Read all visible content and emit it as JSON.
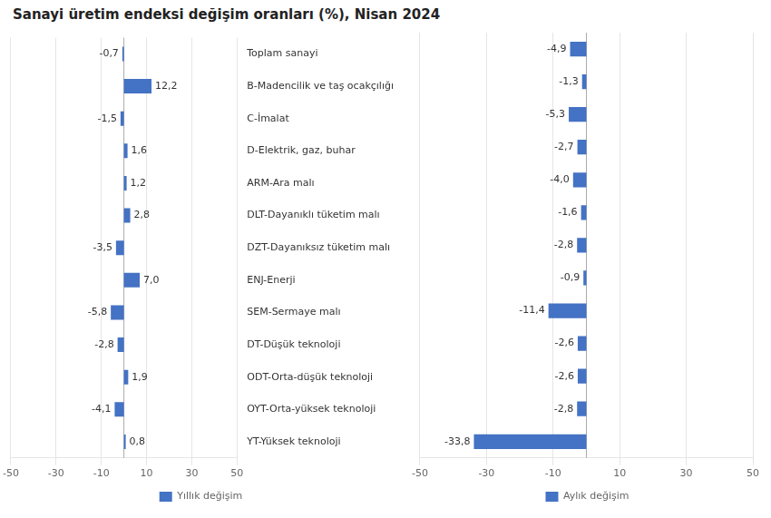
{
  "chart_data": [
    {
      "type": "bar",
      "orientation": "horizontal",
      "title": "Sanayi üretim endeksi değişim oranları (%), Nisan 2024",
      "categories": [
        "Toplam sanayi",
        "B-Madencilik ve taş ocakçılığı",
        "C-İmalat",
        "D-Elektrik, gaz, buhar",
        "ARM-Ara malı",
        "DLT-Dayanıklı tüketim malı",
        "DZT-Dayanıksız tüketim malı",
        "ENJ-Enerji",
        "SEM-Sermaye malı",
        "DT-Düşük teknoloji",
        "ODT-Orta-düşük teknoloji",
        "OYT-Orta-yüksek teknoloji",
        "YT-Yüksek teknoloji"
      ],
      "series": [
        {
          "name": "Yıllık değişim",
          "color": "#4472c4",
          "values": [
            -0.7,
            12.2,
            -1.5,
            1.6,
            1.2,
            2.8,
            -3.5,
            7.0,
            -5.8,
            -2.8,
            1.9,
            -4.1,
            0.8
          ],
          "value_labels": [
            "-0,7",
            "12,2",
            "-1,5",
            "1,6",
            "1,2",
            "2,8",
            "-3,5",
            "7,0",
            "-5,8",
            "-2,8",
            "1,9",
            "-4,1",
            "0,8"
          ]
        }
      ],
      "xlim": [
        -50,
        50
      ],
      "xticks": [
        -50,
        -30,
        -10,
        10,
        30,
        50
      ],
      "grid": true,
      "data_labels": true,
      "legend": "bottom"
    },
    {
      "type": "bar",
      "orientation": "horizontal",
      "categories": [
        "Toplam sanayi",
        "B-Madencilik ve taş ocakçılığı",
        "C-İmalat",
        "D-Elektrik, gaz, buhar",
        "ARM-Ara malı",
        "DLT-Dayanıklı tüketim malı",
        "DZT-Dayanıksız tüketim malı",
        "ENJ-Enerji",
        "SEM-Sermaye malı",
        "DT-Düşük teknoloji",
        "ODT-Orta-düşük teknoloji",
        "OYT-Orta-yüksek teknoloji",
        "YT-Yüksek teknoloji"
      ],
      "series": [
        {
          "name": "Aylık değişim",
          "color": "#4472c4",
          "values": [
            -4.9,
            -1.3,
            -5.3,
            -2.7,
            -4.0,
            -1.6,
            -2.8,
            -0.9,
            -11.4,
            -2.6,
            -2.6,
            -2.8,
            -33.8
          ],
          "value_labels": [
            "-4,9",
            "-1,3",
            "-5,3",
            "-2,7",
            "-4,0",
            "-1,6",
            "-2,8",
            "-0,9",
            "-11,4",
            "-2,6",
            "-2,6",
            "-2,8",
            "-33,8"
          ]
        }
      ],
      "xlim": [
        -50,
        50
      ],
      "xticks": [
        -50,
        -30,
        -10,
        10,
        30,
        50
      ],
      "grid": true,
      "data_labels": true,
      "legend": "bottom",
      "tick_labels": "x"
    }
  ]
}
